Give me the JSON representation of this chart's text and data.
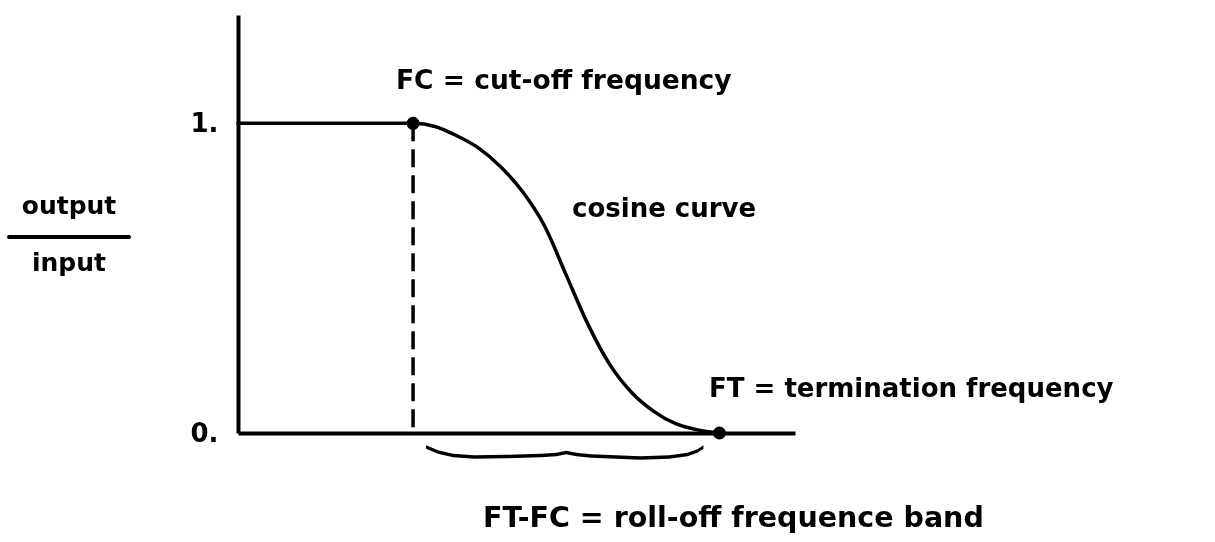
{
  "chart_data": {
    "type": "line",
    "ylabel": "output\ninput",
    "categories": [
      null,
      null,
      null,
      null,
      null,
      null,
      null,
      null,
      null,
      null,
      null,
      null,
      null,
      null,
      null,
      null,
      null,
      null,
      null,
      null,
      null,
      null,
      null
    ],
    "series": [
      {
        "color": "#000000",
        "values": [
          1,
          1,
          1,
          1,
          1,
          1,
          1,
          1,
          1,
          0.99,
          0.96,
          0.92,
          0.86,
          0.78,
          0.67,
          0.51,
          0.35,
          0.22,
          0.13,
          0.07,
          0.03,
          0.01,
          0
        ]
      },
      {
        "type": "scatter",
        "marker": "circle",
        "color": "#000000",
        "values": [
          null,
          null,
          null,
          null,
          null,
          null,
          null,
          null,
          1,
          null,
          null,
          null,
          null,
          null,
          null,
          null,
          null,
          null,
          null,
          null,
          null,
          null,
          0
        ]
      }
    ],
    "ylim": [
      0,
      1.35
    ],
    "yticks": [
      {
        "value": 0,
        "label": "0."
      },
      {
        "value": 1,
        "label": "1."
      }
    ],
    "tick_labels": "y",
    "grid": false,
    "annotations": [
      "FC = cut-off frequency",
      "cosine curve",
      "FT = termination frequency",
      "FT-FC = roll-off frequence band"
    ]
  }
}
